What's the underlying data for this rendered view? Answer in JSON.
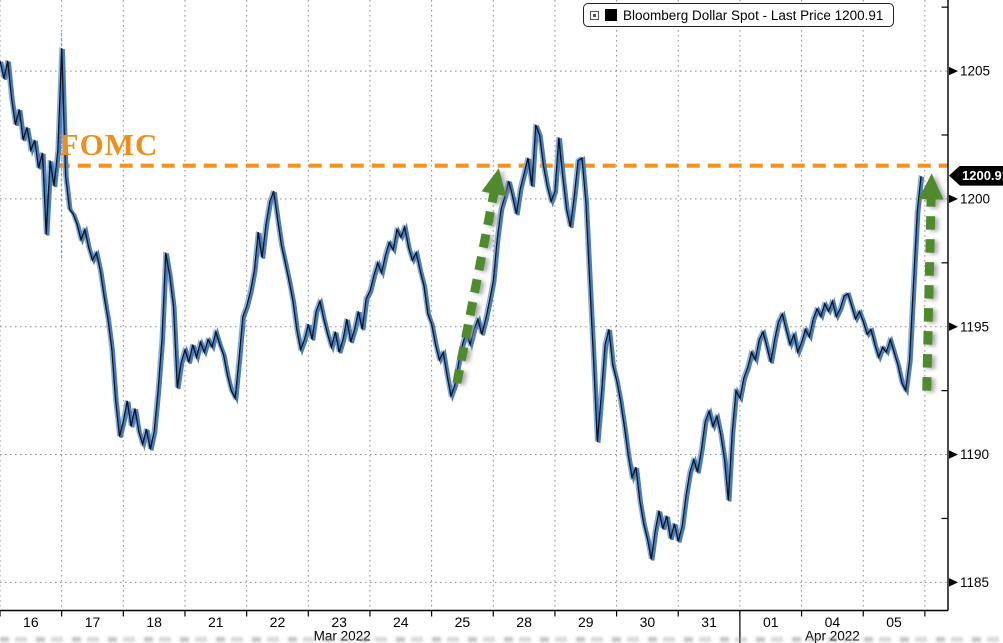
{
  "legend": {
    "label": "Bloomberg Dollar Spot - Last Price 1200.91",
    "swatch_color": "#000000"
  },
  "annotations": {
    "fomc_label": "FOMC",
    "last_price": "1200.91"
  },
  "chart_data": {
    "type": "line",
    "title": "Bloomberg Dollar Spot - Last Price 1200.91",
    "series_name": "Bloomberg Dollar Spot",
    "last_price": 1200.91,
    "ylim": [
      1183.9,
      1207.78
    ],
    "y_ticks": [
      1205,
      1200,
      1195,
      1190,
      1185
    ],
    "y_minor_ticks": [
      1207.5,
      1202.5,
      1197.5,
      1192.5,
      1187.5
    ],
    "x_day_span": 15.375,
    "x_tick_labels": [
      "16",
      "17",
      "18",
      "21",
      "22",
      "23",
      "24",
      "25",
      "28",
      "29",
      "30",
      "31",
      "01",
      "04",
      "05"
    ],
    "months": [
      {
        "label": "Mar 2022",
        "day_center": 5.55
      },
      {
        "label": "Apr 2022",
        "day_center": 13.5
      }
    ],
    "month_separator_day": 12,
    "grid": true,
    "legend_position": "top-right",
    "fomc": {
      "label": "FOMC",
      "level": 1201.3,
      "line_start_day": 0.92,
      "color": "#f0941e"
    },
    "session_break": {
      "day": 0.997,
      "from_price": 1206.5,
      "to_price": 1197.6
    },
    "arrows": [
      {
        "from_day": 7.41,
        "from_price": 1192.8,
        "to_day": 8.09,
        "to_price": 1201.2
      },
      {
        "from_day": 15.03,
        "from_price": 1192.5,
        "to_day": 15.11,
        "to_price": 1201.0
      }
    ],
    "colors": {
      "line_dark": "#0c1422",
      "line_blue": "#4a7db8",
      "line_blue_light": "#85aedd",
      "grid": "#8f8f8f",
      "axis": "#000000",
      "fomc_orange": "#f0941e",
      "arrow_green": "#4f8b2d"
    },
    "days": [
      {
        "label": "16",
        "prices": [
          1205.4,
          1204.7,
          1205.4,
          1203.9,
          1202.9,
          1203.5,
          1202.3,
          1202.8,
          1201.9,
          1202.3,
          1201.2,
          1201.8,
          1198.6,
          1201.5,
          1200.5,
          1201.9
        ]
      },
      {
        "label": "17",
        "prices": [
          1205.9,
          1200.9,
          1199.6,
          1199.4,
          1199.0,
          1198.4,
          1198.8,
          1198.1,
          1197.6,
          1197.9,
          1197.2,
          1196.2,
          1195.3,
          1194.1,
          1192.1,
          1190.7
        ]
      },
      {
        "label": "18",
        "prices": [
          1191.3,
          1192.1,
          1191.1,
          1191.8,
          1190.9,
          1190.4,
          1191.0,
          1190.2,
          1190.9,
          1192.5,
          1194.5,
          1197.9,
          1197.0,
          1195.8,
          1192.6,
          1193.6
        ]
      },
      {
        "label": "21",
        "prices": [
          1194.1,
          1193.6,
          1194.3,
          1193.8,
          1194.4,
          1194.0,
          1194.5,
          1194.2,
          1194.8,
          1194.3,
          1193.9,
          1193.1,
          1192.5,
          1192.2,
          1193.7,
          1195.4
        ]
      },
      {
        "label": "22",
        "prices": [
          1195.8,
          1196.4,
          1197.2,
          1198.7,
          1197.7,
          1199.0,
          1199.9,
          1200.3,
          1199.2,
          1198.2,
          1197.5,
          1196.8,
          1196.0,
          1194.9,
          1194.1,
          1194.5
        ]
      },
      {
        "label": "23",
        "prices": [
          1195.1,
          1194.5,
          1195.6,
          1196.0,
          1195.3,
          1194.7,
          1194.2,
          1194.8,
          1194.0,
          1194.5,
          1195.3,
          1194.4,
          1194.9,
          1195.6,
          1194.9,
          1196.1
        ]
      },
      {
        "label": "24",
        "prices": [
          1196.4,
          1197.0,
          1197.5,
          1197.1,
          1197.8,
          1198.3,
          1198.0,
          1198.8,
          1198.5,
          1198.9,
          1198.1,
          1197.6,
          1197.9,
          1197.2,
          1196.6,
          1195.5
        ]
      },
      {
        "label": "25",
        "prices": [
          1195.1,
          1194.3,
          1193.7,
          1194.0,
          1193.1,
          1192.3,
          1192.7,
          1193.6,
          1194.3,
          1194.8,
          1194.3,
          1194.9,
          1195.3,
          1194.7,
          1195.3,
          1196.0
        ]
      },
      {
        "label": "28",
        "prices": [
          1196.8,
          1198.4,
          1199.6,
          1200.1,
          1200.7,
          1200.1,
          1199.4,
          1200.4,
          1201.0,
          1201.6,
          1200.5,
          1202.9,
          1202.5,
          1201.3,
          1200.5,
          1199.9
        ]
      },
      {
        "label": "29",
        "prices": [
          1200.3,
          1202.4,
          1200.9,
          1199.6,
          1198.9,
          1200.1,
          1201.5,
          1201.6,
          1199.9,
          1196.8,
          1193.7,
          1190.5,
          1192.3,
          1194.3,
          1194.9,
          1193.5
        ]
      },
      {
        "label": "30",
        "prices": [
          1192.9,
          1192.1,
          1191.1,
          1190.0,
          1189.1,
          1189.5,
          1188.2,
          1187.3,
          1186.7,
          1185.9,
          1187.0,
          1187.8,
          1187.1,
          1187.6,
          1186.7,
          1187.3
        ]
      },
      {
        "label": "31",
        "prices": [
          1186.6,
          1187.2,
          1188.4,
          1189.3,
          1189.8,
          1189.3,
          1190.2,
          1191.3,
          1191.7,
          1191.1,
          1191.5,
          1190.8,
          1189.8,
          1188.2,
          1190.9,
          1192.5
        ]
      },
      {
        "label": "01",
        "prices": [
          1192.2,
          1193.0,
          1193.4,
          1194.0,
          1193.7,
          1194.5,
          1194.8,
          1194.2,
          1193.6,
          1194.5,
          1195.2,
          1195.5,
          1194.9,
          1194.3,
          1194.7,
          1194.0
        ]
      },
      {
        "label": "04",
        "prices": [
          1194.4,
          1194.9,
          1194.6,
          1195.3,
          1195.7,
          1195.4,
          1195.9,
          1195.6,
          1196.0,
          1195.4,
          1195.7,
          1196.2,
          1196.3,
          1195.8,
          1195.3,
          1195.6
        ]
      },
      {
        "label": "05",
        "prices": [
          1195.2,
          1194.7,
          1194.9,
          1194.3,
          1193.8,
          1194.2,
          1194.0,
          1194.5,
          1194.0,
          1193.5,
          1192.8,
          1192.5,
          1193.7,
          1196.6,
          1199.5,
          1200.9
        ]
      }
    ]
  }
}
